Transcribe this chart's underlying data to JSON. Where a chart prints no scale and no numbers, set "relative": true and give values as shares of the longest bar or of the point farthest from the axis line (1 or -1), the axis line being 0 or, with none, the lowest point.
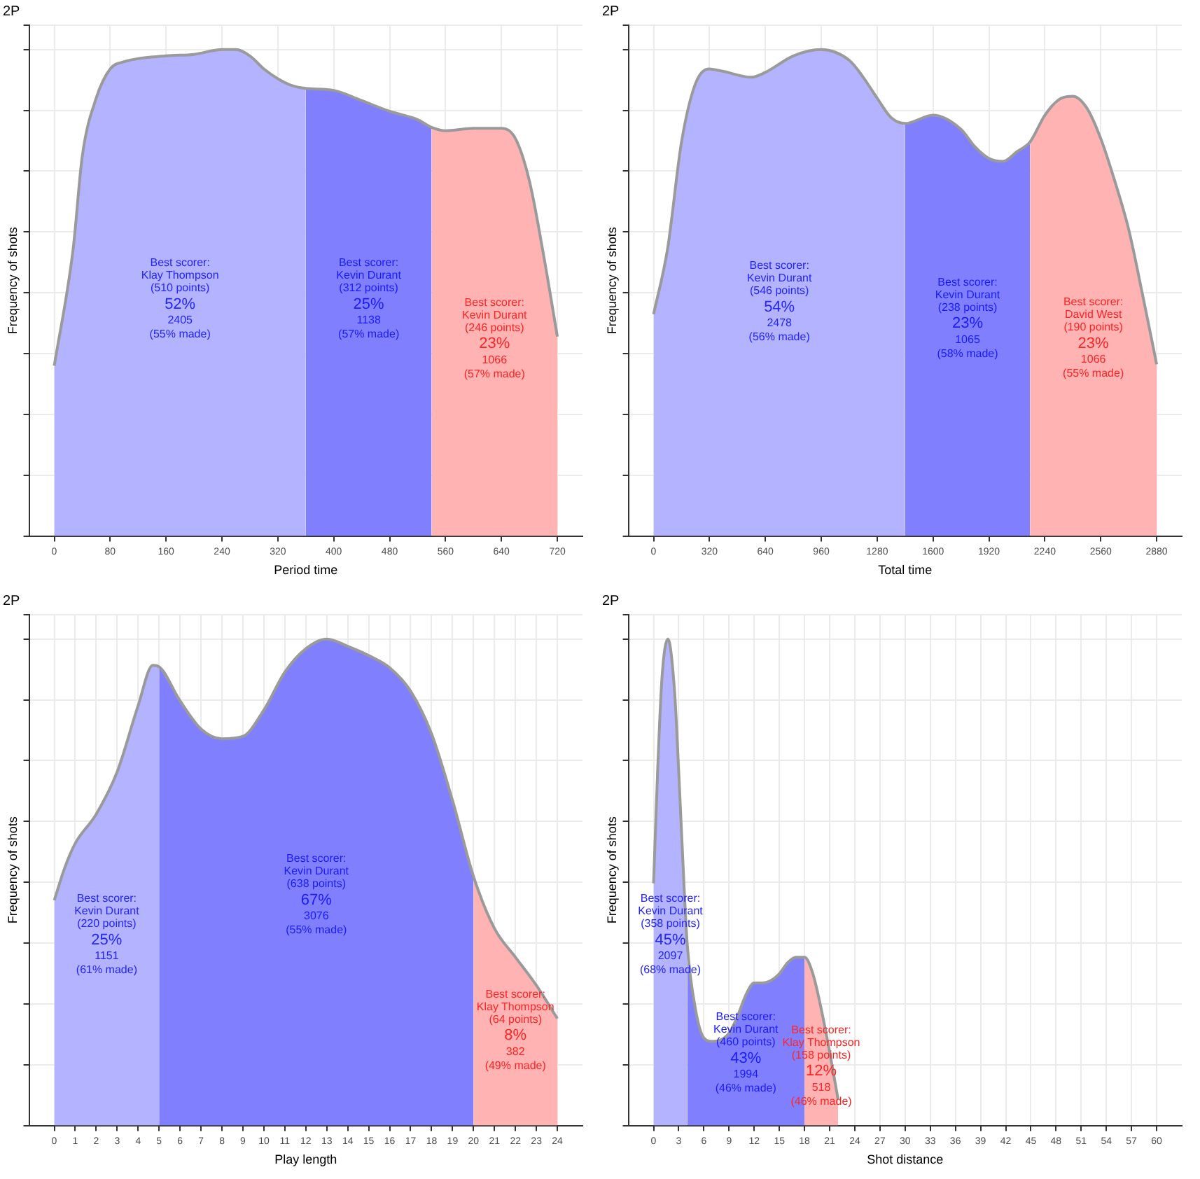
{
  "chart_data": [
    {
      "type": "area",
      "title": "2P",
      "xlabel": "Period time",
      "ylabel": "Frequency of shots",
      "relative": true,
      "grid": true,
      "tick_labels": "x",
      "xlim": [
        -36,
        756
      ],
      "xticks": [
        0,
        80,
        160,
        240,
        320,
        400,
        480,
        560,
        640,
        720
      ],
      "series": [
        {
          "color": "#b3b3ff",
          "x": [
            0,
            27,
            40,
            60,
            80,
            100,
            160,
            200,
            240,
            260,
            280,
            300,
            320,
            340,
            360
          ],
          "values": [
            0.35,
            0.59,
            0.78,
            0.9,
            0.96,
            0.975,
            0.987,
            0.99,
            1,
            1,
            0.987,
            0.96,
            0.94,
            0.926,
            0.92
          ]
        },
        {
          "color": "#8080ff",
          "x": [
            360,
            400,
            440,
            480,
            520,
            540
          ],
          "values": [
            0.92,
            0.916,
            0.895,
            0.873,
            0.856,
            0.84
          ]
        },
        {
          "color": "#ffb3b3",
          "x": [
            540,
            560,
            600,
            640,
            660,
            680,
            700,
            720
          ],
          "values": [
            0.84,
            0.833,
            0.838,
            0.838,
            0.817,
            0.73,
            0.58,
            0.41
          ]
        },
        {
          "type": "line",
          "color": "#9a9a9a",
          "x": [
            0,
            27,
            40,
            60,
            80,
            100,
            160,
            200,
            240,
            260,
            280,
            300,
            320,
            340,
            360,
            400,
            440,
            480,
            520,
            540,
            560,
            600,
            640,
            660,
            680,
            700,
            720
          ],
          "values": [
            0.35,
            0.59,
            0.78,
            0.9,
            0.96,
            0.975,
            0.987,
            0.99,
            1,
            1,
            0.987,
            0.96,
            0.94,
            0.926,
            0.92,
            0.916,
            0.895,
            0.873,
            0.856,
            0.84,
            0.833,
            0.838,
            0.838,
            0.817,
            0.73,
            0.58,
            0.41
          ]
        }
      ],
      "annotations": [
        "Best scorer:\nKlay Thompson\n(510 points)\n52%\n2405\n(55% made)",
        "Best scorer:\nKevin Durant\n(312 points)\n25%\n1138\n(57% made)",
        "Best scorer:\nKevin Durant\n(246 points)\n23%\n1066\n(57% made)"
      ]
    },
    {
      "type": "area",
      "title": "2P",
      "xlabel": "Total time",
      "ylabel": "Frequency of shots",
      "relative": true,
      "grid": true,
      "tick_labels": "x",
      "xlim": [
        -144,
        3024
      ],
      "xticks": [
        0,
        320,
        640,
        960,
        1280,
        1600,
        1920,
        2240,
        2560,
        2880
      ],
      "series": [
        {
          "color": "#b3b3ff",
          "x": [
            0,
            80,
            160,
            240,
            320,
            400,
            560,
            640,
            800,
            960,
            1120,
            1200,
            1280,
            1360,
            1440
          ],
          "values": [
            0.456,
            0.59,
            0.81,
            0.93,
            0.96,
            0.955,
            0.943,
            0.953,
            0.987,
            1,
            0.978,
            0.943,
            0.9,
            0.86,
            0.848
          ]
        },
        {
          "color": "#8080ff",
          "x": [
            1440,
            1600,
            1760,
            1840,
            1920,
            2000,
            2080,
            2155
          ],
          "values": [
            0.848,
            0.865,
            0.836,
            0.8,
            0.776,
            0.77,
            0.79,
            0.81
          ]
        },
        {
          "color": "#ffb3b3",
          "x": [
            2155,
            2240,
            2320,
            2400,
            2480,
            2560,
            2640,
            2720,
            2800,
            2880
          ],
          "values": [
            0.81,
            0.865,
            0.897,
            0.904,
            0.88,
            0.817,
            0.73,
            0.63,
            0.495,
            0.353
          ]
        },
        {
          "type": "line",
          "color": "#9a9a9a",
          "x": [
            0,
            80,
            160,
            240,
            320,
            400,
            560,
            640,
            800,
            960,
            1120,
            1200,
            1280,
            1360,
            1440,
            1600,
            1760,
            1840,
            1920,
            2000,
            2080,
            2155,
            2240,
            2320,
            2400,
            2480,
            2560,
            2640,
            2720,
            2800,
            2880
          ],
          "values": [
            0.456,
            0.59,
            0.81,
            0.93,
            0.96,
            0.955,
            0.943,
            0.953,
            0.987,
            1,
            0.978,
            0.943,
            0.9,
            0.86,
            0.848,
            0.865,
            0.836,
            0.8,
            0.776,
            0.77,
            0.79,
            0.81,
            0.865,
            0.897,
            0.904,
            0.88,
            0.817,
            0.73,
            0.63,
            0.495,
            0.353
          ]
        }
      ],
      "annotations": [
        "Best scorer:\nKevin Durant\n(546 points)\n54%\n2478\n(56% made)",
        "Best scorer:\nKevin Durant\n(238 points)\n23%\n1065\n(58% made)",
        "Best scorer:\nDavid West\n(190 points)\n23%\n1066\n(55% made)"
      ]
    },
    {
      "type": "area",
      "title": "2P",
      "xlabel": "Play length",
      "ylabel": "Frequency of shots",
      "relative": true,
      "grid": true,
      "tick_labels": "x",
      "xlim": [
        -1.2,
        25.2
      ],
      "xticks": [
        0,
        1,
        2,
        3,
        4,
        5,
        6,
        7,
        8,
        9,
        10,
        11,
        12,
        13,
        14,
        15,
        16,
        17,
        18,
        19,
        20,
        21,
        22,
        23,
        24
      ],
      "series": [
        {
          "color": "#b3b3ff",
          "x": [
            0,
            0.5,
            1,
            2,
            3,
            4,
            4.7,
            5
          ],
          "values": [
            0.463,
            0.53,
            0.58,
            0.64,
            0.727,
            0.863,
            0.946,
            0.943
          ]
        },
        {
          "color": "#8080ff",
          "x": [
            5,
            6,
            7,
            8,
            9,
            10,
            11,
            12,
            13,
            14,
            15,
            16,
            17,
            18,
            19,
            20
          ],
          "values": [
            0.943,
            0.873,
            0.815,
            0.795,
            0.8,
            0.854,
            0.932,
            0.98,
            1,
            0.985,
            0.966,
            0.941,
            0.893,
            0.805,
            0.668,
            0.512
          ]
        },
        {
          "color": "#ffb3b3",
          "x": [
            20,
            21,
            22,
            23,
            24
          ],
          "values": [
            0.512,
            0.405,
            0.346,
            0.288,
            0.22
          ]
        },
        {
          "type": "line",
          "color": "#9a9a9a",
          "x": [
            0,
            0.5,
            1,
            2,
            3,
            4,
            4.7,
            5,
            6,
            7,
            8,
            9,
            10,
            11,
            12,
            13,
            14,
            15,
            16,
            17,
            18,
            19,
            20,
            21,
            22,
            23,
            24
          ],
          "values": [
            0.463,
            0.53,
            0.58,
            0.64,
            0.727,
            0.863,
            0.946,
            0.943,
            0.873,
            0.815,
            0.795,
            0.8,
            0.854,
            0.932,
            0.98,
            1,
            0.985,
            0.966,
            0.941,
            0.893,
            0.805,
            0.668,
            0.512,
            0.405,
            0.346,
            0.288,
            0.22
          ]
        }
      ],
      "annotations": [
        "Best scorer:\nKevin Durant\n(220 points)\n25%\n1151\n(61% made)",
        "Best scorer:\nKevin Durant\n(638 points)\n67%\n3076\n(55% made)",
        "Best scorer:\nKlay Thompson\n(64 points)\n8%\n382\n(49% made)"
      ]
    },
    {
      "type": "area",
      "title": "2P",
      "xlabel": "Shot distance",
      "ylabel": "Frequency of shots",
      "relative": true,
      "grid": true,
      "tick_labels": "x",
      "xlim": [
        -3,
        63
      ],
      "xticks": [
        0,
        3,
        6,
        9,
        12,
        15,
        18,
        21,
        24,
        27,
        30,
        33,
        36,
        39,
        42,
        45,
        48,
        51,
        54,
        57,
        60
      ],
      "series": [
        {
          "color": "#b3b3ff",
          "x": [
            0,
            0.5,
            1,
            1.7,
            2.5,
            3,
            3.5,
            4
          ],
          "values": [
            0.498,
            0.737,
            0.92,
            1,
            0.893,
            0.727,
            0.541,
            0.376
          ]
        },
        {
          "color": "#8080ff",
          "x": [
            4,
            5,
            6,
            7,
            8,
            9,
            10,
            11,
            12,
            13,
            14,
            15,
            16,
            17,
            18
          ],
          "values": [
            0.376,
            0.239,
            0.18,
            0.173,
            0.176,
            0.19,
            0.224,
            0.268,
            0.293,
            0.293,
            0.298,
            0.312,
            0.335,
            0.346,
            0.346
          ]
        },
        {
          "color": "#ffb3b3",
          "x": [
            18,
            19,
            20,
            21,
            22
          ],
          "values": [
            0.346,
            0.312,
            0.239,
            0.151,
            0.054
          ]
        },
        {
          "type": "line",
          "color": "#9a9a9a",
          "x": [
            0,
            0.5,
            1,
            1.7,
            2.5,
            3,
            3.5,
            4,
            5,
            6,
            7,
            8,
            9,
            10,
            11,
            12,
            13,
            14,
            15,
            16,
            17,
            18,
            19,
            20,
            21,
            22
          ],
          "values": [
            0.498,
            0.737,
            0.92,
            1,
            0.893,
            0.727,
            0.541,
            0.376,
            0.239,
            0.18,
            0.173,
            0.176,
            0.19,
            0.224,
            0.268,
            0.293,
            0.293,
            0.298,
            0.312,
            0.335,
            0.346,
            0.346,
            0.312,
            0.239,
            0.151,
            0.054
          ]
        }
      ],
      "annotations": [
        "Best scorer:\nKevin Durant\n(358 points)\n45%\n2097\n(68% made)",
        "Best scorer:\nKevin Durant\n(460 points)\n43%\n1994\n(46% made)",
        "Best scorer:\nKlay Thompson\n(158 points)\n12%\n518\n(46% made)"
      ]
    }
  ]
}
